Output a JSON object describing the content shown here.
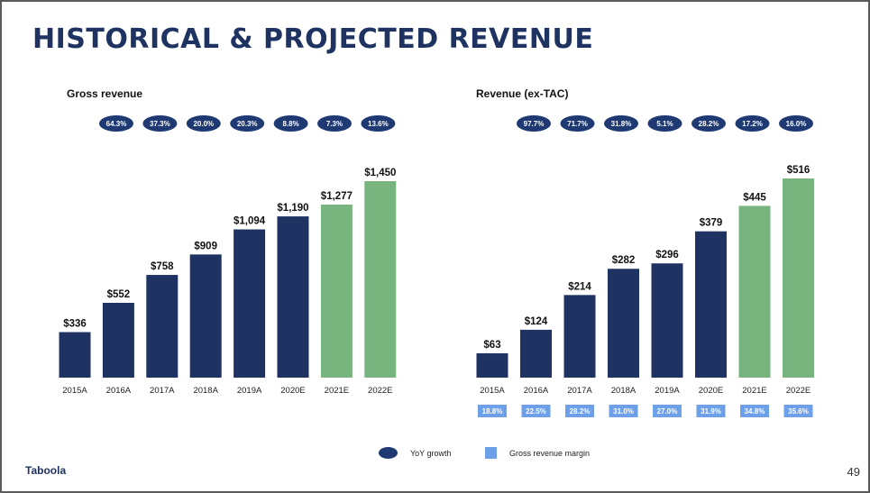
{
  "slide": {
    "title": "HISTORICAL & PROJECTED REVENUE",
    "page_number": "49",
    "logo_text": "Taboola"
  },
  "legend": {
    "yoy_label": "YoY growth",
    "margin_label": "Gross revenue margin"
  },
  "colors": {
    "historical": "#1f3362",
    "projected": "#78b57e",
    "badge": "#1f3a73",
    "margin": "#6ea0ea"
  },
  "chart_data": [
    {
      "type": "bar",
      "title": "Gross revenue",
      "categories": [
        "2015A",
        "2016A",
        "2017A",
        "2018A",
        "2019A",
        "2020E",
        "2021E",
        "2022E"
      ],
      "values": [
        336,
        552,
        758,
        909,
        1094,
        1190,
        1277,
        1450
      ],
      "value_labels": [
        "$336",
        "$552",
        "$758",
        "$909",
        "$1,094",
        "$1,190",
        "$1,277",
        "$1,450"
      ],
      "projected": [
        false,
        false,
        false,
        false,
        false,
        false,
        true,
        true
      ],
      "yoy_growth": [
        "64.3%",
        "37.3%",
        "20.0%",
        "20.3%",
        "8.8%",
        "7.3%",
        "13.6%"
      ],
      "ylim": [
        0,
        1450
      ]
    },
    {
      "type": "bar",
      "title": "Revenue (ex-TAC)",
      "categories": [
        "2015A",
        "2016A",
        "2017A",
        "2018A",
        "2019A",
        "2020E",
        "2021E",
        "2022E"
      ],
      "values": [
        63,
        124,
        214,
        282,
        296,
        379,
        445,
        516
      ],
      "value_labels": [
        "$63",
        "$124",
        "$214",
        "$282",
        "$296",
        "$379",
        "$445",
        "$516"
      ],
      "projected": [
        false,
        false,
        false,
        false,
        false,
        false,
        true,
        true
      ],
      "yoy_growth": [
        "97.7%",
        "71.7%",
        "31.8%",
        "5.1%",
        "28.2%",
        "17.2%",
        "16.0%"
      ],
      "gross_revenue_margin": [
        "18.8%",
        "22.5%",
        "28.2%",
        "31.0%",
        "27.0%",
        "31.9%",
        "34.8%",
        "35.6%"
      ],
      "ylim": [
        0,
        516
      ]
    }
  ]
}
